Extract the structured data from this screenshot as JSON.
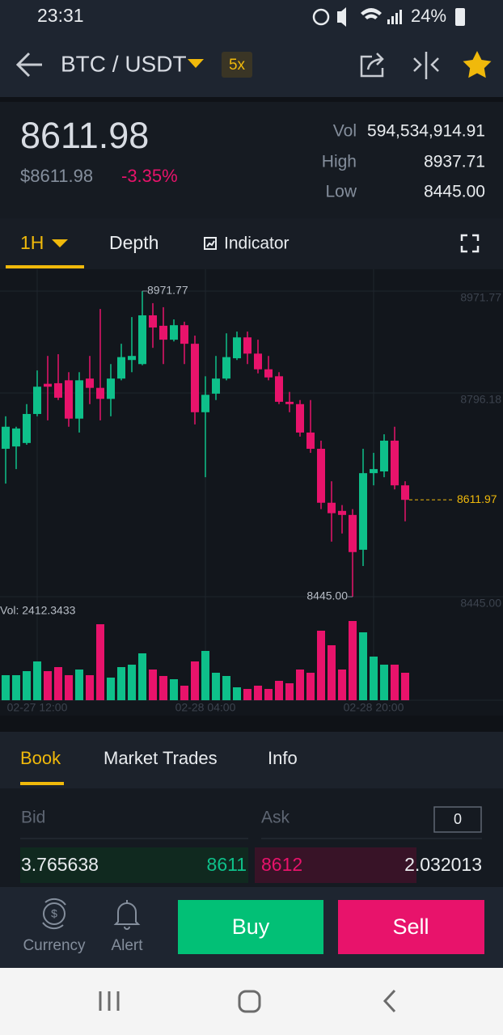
{
  "status_bar": {
    "time": "23:31",
    "battery": "24%"
  },
  "header": {
    "pair": "BTC / USDT",
    "leverage": "5x"
  },
  "ticker": {
    "price": "8611.98",
    "usd_price": "$8611.98",
    "change": "-3.35%",
    "stats": [
      {
        "label": "Vol",
        "value": "594,534,914.91"
      },
      {
        "label": "High",
        "value": "8937.71"
      },
      {
        "label": "Low",
        "value": "8445.00"
      }
    ]
  },
  "chart_tabs": [
    "1H",
    "Depth",
    "Indicator"
  ],
  "chart_data": {
    "type": "candlestick",
    "categories": [
      null,
      null,
      null,
      "02-27 12:00",
      null,
      null,
      null,
      null,
      null,
      null,
      null,
      null,
      null,
      null,
      null,
      null,
      null,
      null,
      null,
      "02-28 04:00",
      null,
      null,
      null,
      null,
      null,
      null,
      null,
      null,
      null,
      null,
      null,
      null,
      null,
      null,
      null,
      "02-28 20:00",
      null,
      null,
      null
    ],
    "open": [
      8700,
      8704,
      8710,
      8760,
      8812,
      8813,
      8818,
      8752,
      8821,
      8805,
      8786,
      8821,
      8853,
      8846,
      8930,
      8912,
      8888,
      8913,
      8881,
      8763,
      8795,
      8821,
      8856,
      8892,
      8864,
      8837,
      8825,
      8781,
      8777,
      8728,
      8700,
      8607,
      8593,
      8586,
      8526,
      8658,
      8661,
      8714,
      8637
    ],
    "high": [
      8756,
      8738,
      8777,
      8835,
      8860,
      8863,
      8832,
      8832,
      8860,
      8941,
      8846,
      8881,
      8927,
      8971.77,
      8951,
      8944,
      8923,
      8919,
      8895,
      8825,
      8860,
      8899,
      8902,
      8902,
      8888,
      8860,
      8832,
      8798,
      8784,
      8784,
      8714,
      8644,
      8603,
      8596,
      8700,
      8693,
      8725,
      8738,
      8644
    ],
    "low": [
      8640,
      8665,
      8707,
      8756,
      8749,
      8784,
      8738,
      8728,
      8777,
      8749,
      8756,
      8818,
      8832,
      8844,
      8874,
      8846,
      8885,
      8846,
      8742,
      8651,
      8784,
      8818,
      8853,
      8846,
      8830,
      8818,
      8777,
      8763,
      8721,
      8693,
      8596,
      8540,
      8554,
      8445,
      8498,
      8637,
      8651,
      8630,
      8575
    ],
    "close": [
      8738,
      8735,
      8760,
      8807,
      8807,
      8788,
      8752,
      8818,
      8805,
      8786,
      8821,
      8858,
      8860,
      8930,
      8909,
      8888,
      8913,
      8881,
      8763,
      8793,
      8821,
      8858,
      8892,
      8864,
      8837,
      8823,
      8781,
      8777,
      8728,
      8700,
      8607,
      8589,
      8586,
      8522,
      8658,
      8665,
      8714,
      8637,
      8611.97
    ],
    "volume": [
      2200,
      2200,
      2554,
      3405,
      2554,
      2909,
      2200,
      2696,
      2200,
      6669,
      1987,
      2909,
      3122,
      4115,
      2696,
      2129,
      1845,
      1277,
      3405,
      4328,
      2412,
      2129,
      1135,
      993,
      1277,
      993,
      1703,
      1490,
      2696,
      2412,
      6102,
      4825,
      2696,
      6953,
      5960,
      3831,
      3122,
      3122,
      2412.3433
    ],
    "up_color": "#0ec08a",
    "down_color": "#e8136b",
    "ylim": [
      8445,
      8971.77
    ],
    "yticks": [
      8971.77,
      8796.18,
      {
        "value": 8445,
        "label": "8445.00"
      }
    ],
    "grid": true,
    "high_marker": 8971.77,
    "low_marker": {
      "value": 8445,
      "label": "8445.00"
    },
    "last_price": 8611.97,
    "volume_label": "Vol: 2412.3433"
  },
  "book_tabs": [
    "Book",
    "Market Trades",
    "Info"
  ],
  "book": {
    "bid_label": "Bid",
    "ask_label": "Ask",
    "precision": "0",
    "row": {
      "bid_amount": "3.765638",
      "bid_price": "8611",
      "ask_price": "8612",
      "ask_amount": "2.032013"
    }
  },
  "bottom_bar": {
    "currency": "Currency",
    "alert": "Alert",
    "buy": "Buy",
    "sell": "Sell"
  }
}
